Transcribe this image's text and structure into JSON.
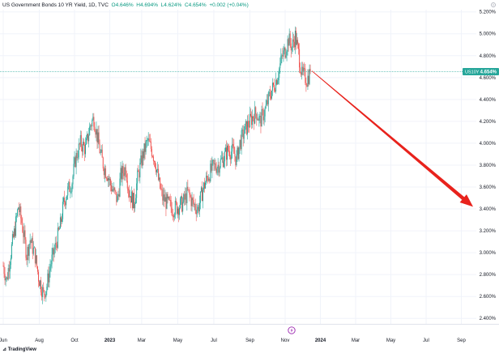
{
  "header": {
    "title": "US Government Bonds 10 YR Yield, 1D, TVC",
    "open": "O4.646%",
    "high": "H4.694%",
    "low": "L4.624%",
    "close": "C4.654%",
    "change": "+0.002 (+0.04%)"
  },
  "watermark": "TradingView",
  "price_label": {
    "symbol": "US10Y",
    "value": "4.654%"
  },
  "colors": {
    "up": "#26a69a",
    "down": "#ef5350",
    "arrow": "#e8221c",
    "price_line": "#26a69a",
    "earnings_marker": "#9c27b0"
  },
  "chart_data": {
    "type": "candlestick",
    "y_ticks": [
      "2.400%",
      "2.600%",
      "2.800%",
      "3.000%",
      "3.200%",
      "3.400%",
      "3.600%",
      "3.800%",
      "4.000%",
      "4.200%",
      "4.400%",
      "4.600%",
      "4.800%",
      "5.000%",
      "5.200%"
    ],
    "ylim": [
      2.35,
      5.22
    ],
    "x_ticks": [
      "Jun",
      "Aug",
      "Oct",
      "2023",
      "Mar",
      "May",
      "Jul",
      "Sep",
      "Nov",
      "2024",
      "Mar",
      "May",
      "Jul",
      "Sep"
    ],
    "x_tick_index": [
      0,
      43,
      85,
      127,
      165,
      208,
      251,
      294,
      336,
      378,
      420,
      462,
      504,
      546
    ],
    "x_axis_bars": 560,
    "current_value": 4.654,
    "candles_start": "Jun",
    "anchors": [
      [
        0,
        2.88
      ],
      [
        4,
        2.75
      ],
      [
        10,
        3.05
      ],
      [
        14,
        3.22
      ],
      [
        18,
        3.42
      ],
      [
        22,
        3.28
      ],
      [
        28,
        2.98
      ],
      [
        32,
        3.12
      ],
      [
        38,
        2.97
      ],
      [
        42,
        2.78
      ],
      [
        48,
        2.62
      ],
      [
        52,
        2.7
      ],
      [
        56,
        2.88
      ],
      [
        62,
        3.05
      ],
      [
        68,
        3.25
      ],
      [
        72,
        3.45
      ],
      [
        76,
        3.55
      ],
      [
        82,
        3.65
      ],
      [
        86,
        3.85
      ],
      [
        92,
        4.0
      ],
      [
        98,
        3.95
      ],
      [
        104,
        4.17
      ],
      [
        108,
        4.23
      ],
      [
        112,
        4.06
      ],
      [
        116,
        3.9
      ],
      [
        120,
        3.78
      ],
      [
        124,
        3.72
      ],
      [
        128,
        3.62
      ],
      [
        132,
        3.55
      ],
      [
        136,
        3.48
      ],
      [
        140,
        3.7
      ],
      [
        146,
        3.78
      ],
      [
        150,
        3.55
      ],
      [
        156,
        3.45
      ],
      [
        160,
        3.68
      ],
      [
        166,
        3.88
      ],
      [
        172,
        4.02
      ],
      [
        178,
        3.92
      ],
      [
        182,
        3.8
      ],
      [
        186,
        3.62
      ],
      [
        190,
        3.5
      ],
      [
        196,
        3.45
      ],
      [
        202,
        3.4
      ],
      [
        208,
        3.42
      ],
      [
        214,
        3.45
      ],
      [
        220,
        3.55
      ],
      [
        226,
        3.45
      ],
      [
        232,
        3.4
      ],
      [
        238,
        3.58
      ],
      [
        244,
        3.7
      ],
      [
        250,
        3.78
      ],
      [
        256,
        3.8
      ],
      [
        262,
        3.86
      ],
      [
        268,
        3.94
      ],
      [
        274,
        3.92
      ],
      [
        278,
        3.85
      ],
      [
        282,
        4.0
      ],
      [
        288,
        4.12
      ],
      [
        294,
        4.2
      ],
      [
        298,
        4.25
      ],
      [
        302,
        4.28
      ],
      [
        306,
        4.2
      ],
      [
        312,
        4.3
      ],
      [
        318,
        4.45
      ],
      [
        324,
        4.55
      ],
      [
        328,
        4.65
      ],
      [
        332,
        4.78
      ],
      [
        336,
        4.85
      ],
      [
        340,
        4.95
      ],
      [
        344,
        4.88
      ],
      [
        348,
        4.98
      ],
      [
        352,
        4.82
      ],
      [
        356,
        4.62
      ],
      [
        358,
        4.62
      ],
      [
        362,
        4.58
      ],
      [
        366,
        4.654
      ]
    ],
    "annotation": {
      "type": "arrow",
      "from": [
        368,
        4.66
      ],
      "to": [
        560,
        3.42
      ]
    }
  }
}
